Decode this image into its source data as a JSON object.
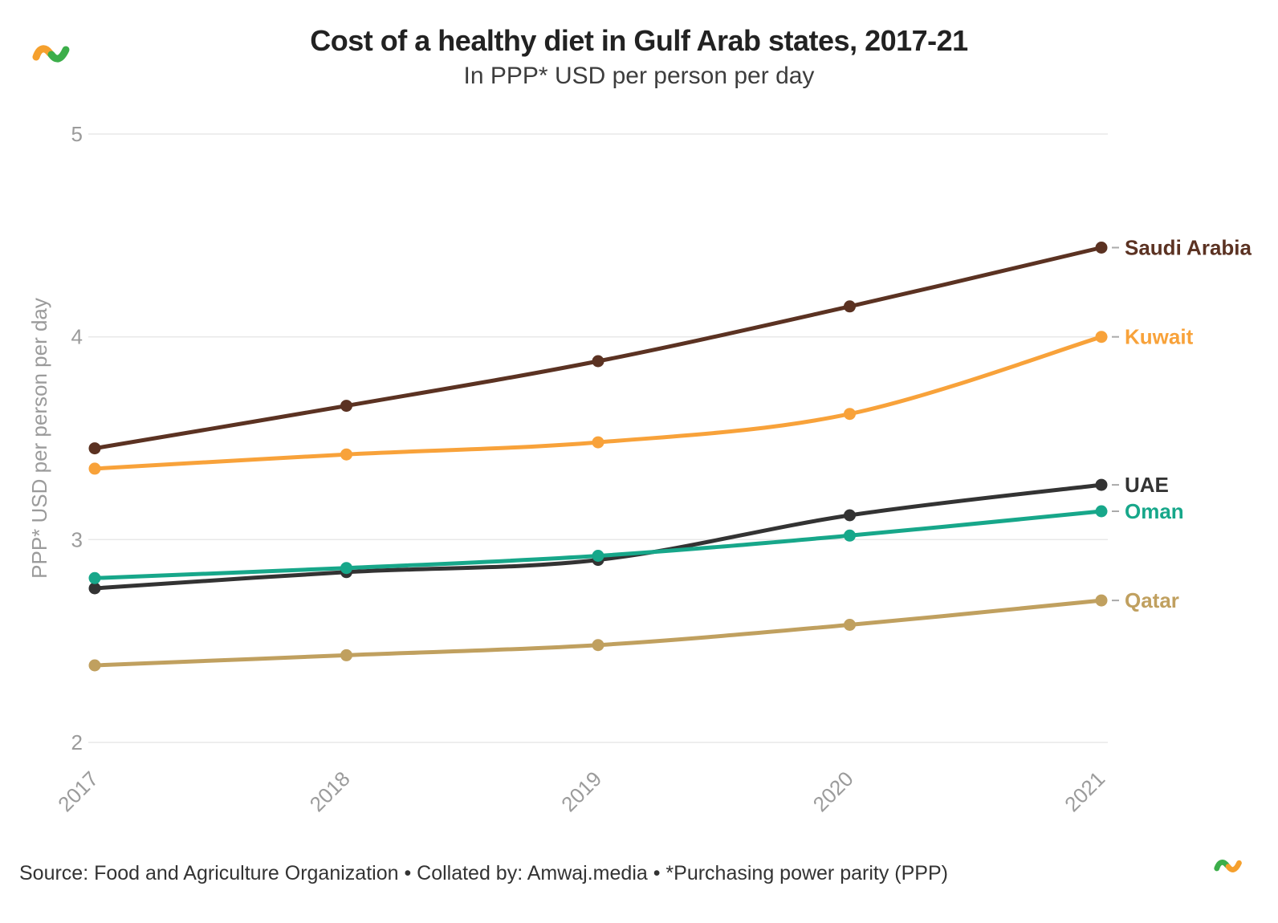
{
  "header": {
    "title": "Cost of a healthy diet in Gulf Arab states, 2017-21",
    "subtitle": "In PPP* USD per person per day"
  },
  "footer": {
    "source": "Source: Food and Agriculture Organization • Collated by: Amwaj.media • *Purchasing power parity (PPP)"
  },
  "logo": {
    "orange": "#f5a02d",
    "green": "#3cae4a"
  },
  "chart_data": {
    "type": "line",
    "title": "Cost of a healthy diet in Gulf Arab states, 2017-21",
    "subtitle": "In PPP* USD per person per day",
    "xlabel": "",
    "ylabel": "PPP* USD per person per day",
    "x": [
      "2017",
      "2018",
      "2019",
      "2020",
      "2021"
    ],
    "ylim": [
      2,
      5
    ],
    "yticks": [
      2,
      3,
      4,
      5
    ],
    "grid": true,
    "legend_position": "right-end-labels",
    "series": [
      {
        "name": "Saudi Arabia",
        "color": "#5b3222",
        "values": [
          3.45,
          3.66,
          3.88,
          4.15,
          4.44
        ]
      },
      {
        "name": "Kuwait",
        "color": "#f8a23a",
        "values": [
          3.35,
          3.42,
          3.48,
          3.62,
          4.0
        ]
      },
      {
        "name": "UAE",
        "color": "#333333",
        "values": [
          2.76,
          2.84,
          2.9,
          3.12,
          3.27
        ]
      },
      {
        "name": "Oman",
        "color": "#17a78a",
        "values": [
          2.81,
          2.86,
          2.92,
          3.02,
          3.14
        ]
      },
      {
        "name": "Qatar",
        "color": "#c0a05f",
        "values": [
          2.38,
          2.43,
          2.48,
          2.58,
          2.7
        ]
      }
    ]
  }
}
